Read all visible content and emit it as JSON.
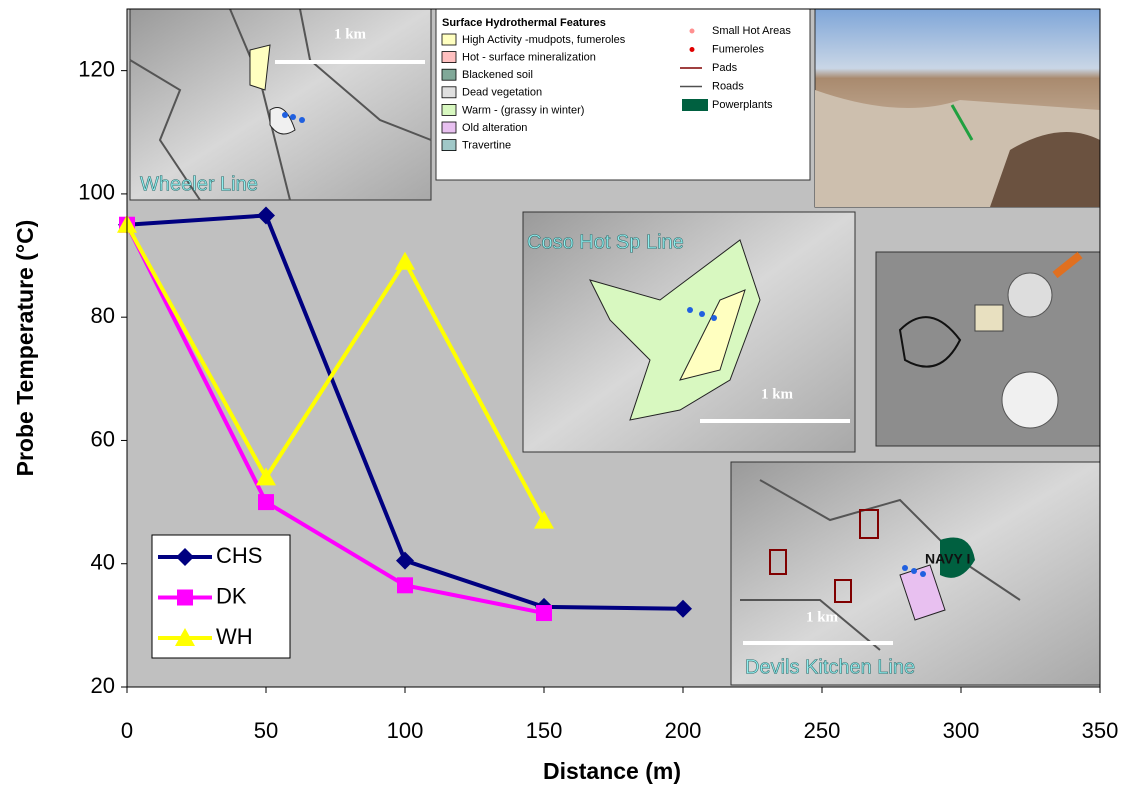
{
  "chart_data": {
    "type": "line",
    "x_label": "Distance (m)",
    "y_label": "Probe Temperature (°C)",
    "xlim": [
      0,
      350
    ],
    "xticks": [
      0,
      50,
      100,
      150,
      200,
      250,
      300,
      350
    ],
    "ylim": [
      20,
      130
    ],
    "yticks": [
      20,
      40,
      60,
      80,
      100,
      120
    ],
    "background": "#c0c0c0",
    "legend": "lower-left",
    "series": [
      {
        "name": "CHS",
        "color": "#000080",
        "marker": "diamond",
        "x": [
          0,
          50,
          100,
          150,
          200
        ],
        "values": [
          95,
          96.5,
          40.5,
          33,
          32.7
        ]
      },
      {
        "name": "DK",
        "color": "#ff00ff",
        "marker": "square",
        "x": [
          0,
          50,
          100,
          150
        ],
        "values": [
          95,
          50,
          36.5,
          32
        ]
      },
      {
        "name": "WH",
        "color": "#ffff00",
        "marker": "triangle",
        "x": [
          0,
          50,
          100,
          150
        ],
        "values": [
          95,
          54,
          89,
          47
        ]
      }
    ],
    "insets": {
      "wheeler": {
        "label": "Wheeler Line",
        "scale": "1 km"
      },
      "coso": {
        "label": "Coso Hot Sp Line",
        "scale": "1 km"
      },
      "devils": {
        "label": "Devils Kitchen Line",
        "scale": "1 km",
        "site": "NAVY I"
      },
      "map_legend": {
        "title": "Surface Hydrothermal Features",
        "areas": [
          {
            "name": "High Activity -mudpots, fumeroles",
            "color": "#ffffc0"
          },
          {
            "name": "Hot - surface mineralization",
            "color": "#ffc0c0"
          },
          {
            "name": "Blackened soil",
            "color": "#80a898"
          },
          {
            "name": "Dead vegetation",
            "color": "#e0e0e0"
          },
          {
            "name": "Warm - (grassy in winter)",
            "color": "#d8f8c0"
          },
          {
            "name": "Old alteration",
            "color": "#e8c0f0"
          },
          {
            "name": "Travertine",
            "color": "#a0c8c8"
          }
        ],
        "symbols": [
          {
            "name": "Small Hot Areas",
            "kind": "dot",
            "color": "#ff9090"
          },
          {
            "name": "Fumeroles",
            "kind": "dot",
            "color": "#e00000"
          },
          {
            "name": "Pads",
            "kind": "line",
            "color": "#800000"
          },
          {
            "name": "Roads",
            "kind": "line",
            "color": "#505050"
          },
          {
            "name": "Powerplants",
            "kind": "box",
            "color": "#006040"
          }
        ]
      }
    }
  }
}
